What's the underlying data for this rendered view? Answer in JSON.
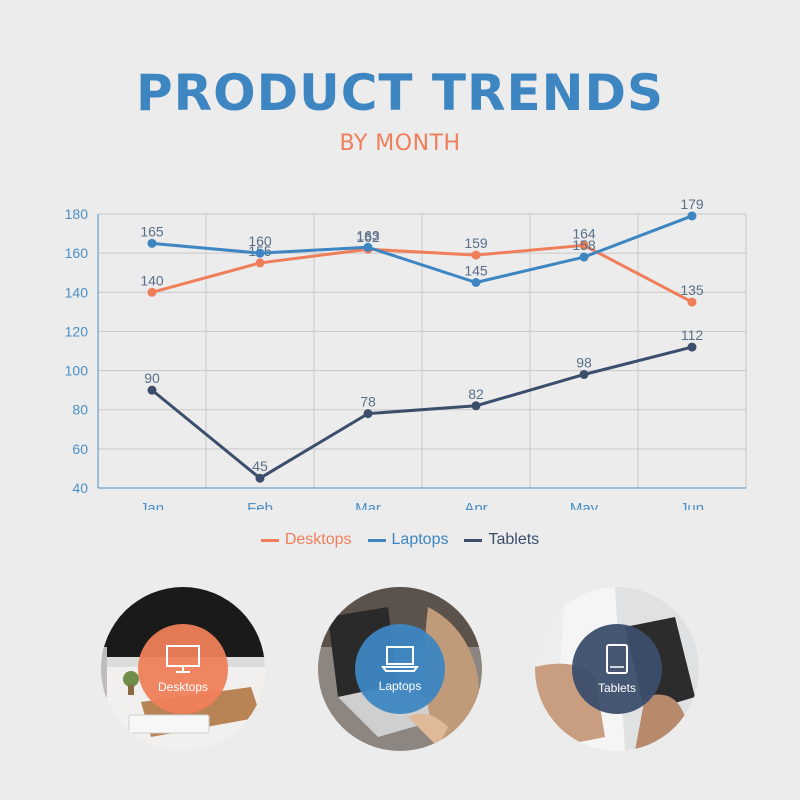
{
  "header": {
    "title": "PRODUCT TRENDS",
    "subtitle": "BY MONTH"
  },
  "colors": {
    "desktops": "#ef7e5a",
    "laptops": "#3d86c2",
    "tablets": "#3b4e6b",
    "axis": "#4a8fc7",
    "grid": "#c8c8c8",
    "label": "#5a6f8a"
  },
  "chart_data": {
    "type": "line",
    "title": "PRODUCT TRENDS",
    "subtitle": "BY MONTH",
    "xlabel": "",
    "ylabel": "",
    "categories": [
      "Jan",
      "Feb",
      "Mar",
      "Apr",
      "May",
      "Jun"
    ],
    "ylim": [
      40,
      180
    ],
    "yticks": [
      40,
      60,
      80,
      100,
      120,
      140,
      160,
      180
    ],
    "grid": true,
    "legend_position": "bottom",
    "series": [
      {
        "name": "Desktops",
        "color": "#ef7e5a",
        "values": [
          140,
          155,
          162,
          159,
          164,
          135
        ]
      },
      {
        "name": "Laptops",
        "color": "#3d86c2",
        "values": [
          165,
          160,
          163,
          145,
          158,
          179
        ]
      },
      {
        "name": "Tablets",
        "color": "#3b4e6b",
        "values": [
          90,
          45,
          78,
          82,
          98,
          112
        ]
      }
    ]
  },
  "legend": [
    {
      "label": "Desktops",
      "color": "#ef7e5a"
    },
    {
      "label": "Laptops",
      "color": "#3d86c2"
    },
    {
      "label": "Tablets",
      "color": "#3b4e6b"
    }
  ],
  "cards": [
    {
      "label": "Desktops",
      "icon": "desktop-monitor-icon",
      "color": "#ef7e5a"
    },
    {
      "label": "Laptops",
      "icon": "laptop-icon",
      "color": "#3d86c2"
    },
    {
      "label": "Tablets",
      "icon": "tablet-icon",
      "color": "#3b4e6b"
    }
  ]
}
